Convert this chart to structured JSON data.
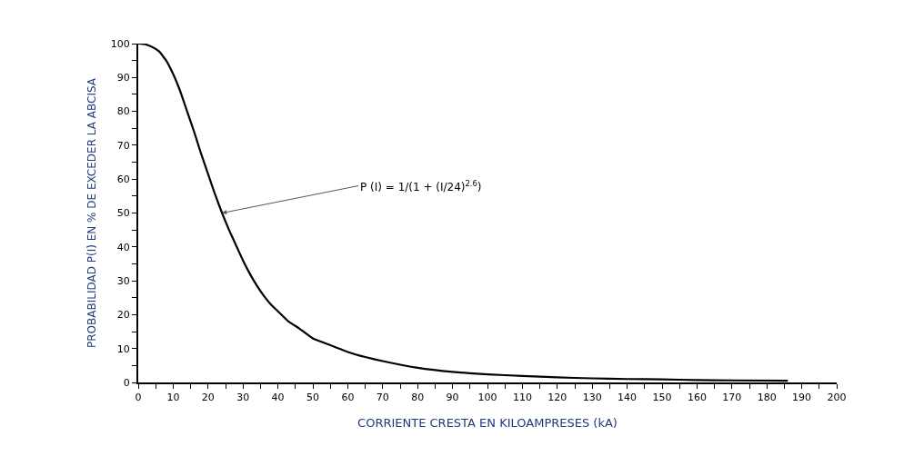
{
  "chart_data": {
    "type": "line",
    "xlabel": "CORRIENTE CRESTA EN KILOAMPRESES (kA)",
    "ylabel": "PROBABILIDAD P(I) EN % DE EXCEDER LA ABCISA",
    "x": [
      0,
      2,
      4,
      6,
      8,
      10,
      12,
      14,
      16,
      18,
      20,
      22,
      24,
      26,
      28,
      30,
      32,
      34,
      36,
      38,
      40,
      43,
      46,
      50,
      55,
      60,
      65,
      70,
      80,
      90,
      100,
      110,
      120,
      130,
      140,
      150,
      160,
      170,
      186
    ],
    "series": [
      {
        "color": "#000000",
        "values": [
          100,
          99.8,
          99,
          97.7,
          95,
          91,
          86,
          80,
          74,
          67.5,
          61.5,
          55.5,
          50,
          45,
          40.5,
          36,
          32,
          28.5,
          25.5,
          23,
          21,
          18,
          16,
          13,
          11,
          9,
          7.5,
          6.3,
          4.3,
          3.1,
          2.4,
          1.9,
          1.5,
          1.2,
          1.0,
          0.9,
          0.7,
          0.6,
          0.5
        ]
      }
    ],
    "xlim": [
      0,
      200
    ],
    "ylim": [
      0,
      100
    ],
    "xticks": [
      0,
      {
        "value": 5,
        "label": null
      },
      10,
      {
        "value": 15,
        "label": null
      },
      20,
      {
        "value": 25,
        "label": null
      },
      30,
      {
        "value": 35,
        "label": null
      },
      40,
      {
        "value": 45,
        "label": null
      },
      50,
      {
        "value": 55,
        "label": null
      },
      60,
      {
        "value": 65,
        "label": null
      },
      70,
      {
        "value": 75,
        "label": null
      },
      80,
      {
        "value": 85,
        "label": null
      },
      90,
      {
        "value": 95,
        "label": null
      },
      100,
      {
        "value": 105,
        "label": null
      },
      110,
      {
        "value": 115,
        "label": null
      },
      120,
      {
        "value": 125,
        "label": null
      },
      130,
      {
        "value": 135,
        "label": null
      },
      140,
      {
        "value": 145,
        "label": null
      },
      150,
      {
        "value": 155,
        "label": null
      },
      160,
      {
        "value": 165,
        "label": null
      },
      170,
      {
        "value": 175,
        "label": null
      },
      180,
      {
        "value": 185,
        "label": null
      },
      190,
      {
        "value": 195,
        "label": null
      },
      200
    ],
    "yticks": [
      0,
      {
        "value": 5,
        "label": null
      },
      10,
      {
        "value": 15,
        "label": null
      },
      20,
      {
        "value": 25,
        "label": null
      },
      30,
      {
        "value": 35,
        "label": null
      },
      40,
      {
        "value": 45,
        "label": null
      },
      50,
      {
        "value": 55,
        "label": null
      },
      60,
      {
        "value": 65,
        "label": null
      },
      70,
      {
        "value": 75,
        "label": null
      },
      80,
      {
        "value": 85,
        "label": null
      },
      90,
      {
        "value": 95,
        "label": null
      },
      100
    ],
    "annotations": [
      {
        "text": "P (I) = 1/(1 + (I/24)$^{2.6}$)",
        "x": 24,
        "y": 50
      }
    ],
    "marker": "none",
    "line_style": "solid"
  }
}
